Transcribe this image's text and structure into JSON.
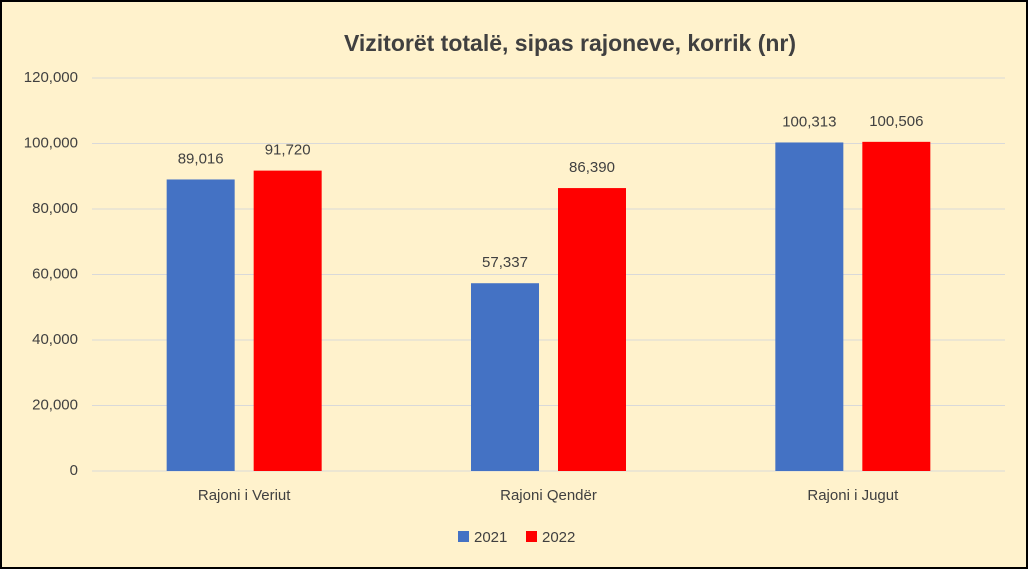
{
  "chart_data": {
    "type": "bar",
    "title": "Vizitorët totalë, sipas rajoneve, korrik (nr)",
    "categories": [
      "Rajoni i Veriut",
      "Rajoni Qendër",
      "Rajoni i Jugut"
    ],
    "series": [
      {
        "name": "2021",
        "color": "#4472c4",
        "values": [
          89016,
          57337,
          100313
        ],
        "value_labels": [
          "89,016",
          "57,337",
          "100,313"
        ]
      },
      {
        "name": "2022",
        "color": "#ff0000",
        "values": [
          91720,
          86390,
          100506
        ],
        "value_labels": [
          "91,720",
          "86,390",
          "100,506"
        ]
      }
    ],
    "ylim": [
      0,
      120000
    ],
    "yticks": [
      0,
      {
        "value": 20000,
        "label": "20,000"
      },
      {
        "value": 40000,
        "label": "40,000"
      },
      {
        "value": 60000,
        "label": "60,000"
      },
      {
        "value": 80000,
        "label": "80,000"
      },
      {
        "value": 100000,
        "label": "100,000"
      },
      {
        "value": 120000,
        "label": "120,000"
      }
    ],
    "grid": true,
    "legend": "bottom"
  }
}
